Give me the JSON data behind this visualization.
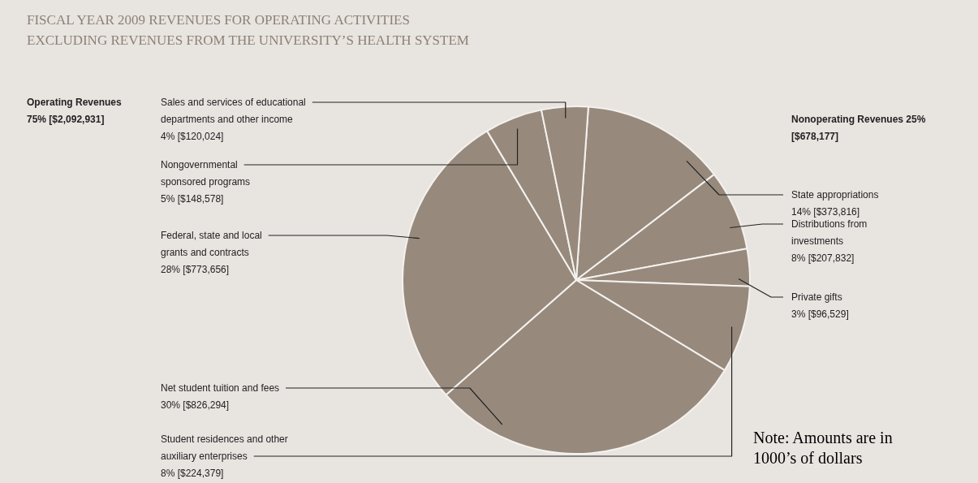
{
  "chart_data": {
    "type": "pie",
    "title": "FISCAL YEAR 2009 REVENUES FOR OPERATING ACTIVITIES",
    "subtitle": "EXCLUDING REVENUES FROM THE UNIVERSITY’S HEALTH SYSTEM",
    "categories": [
      "State appropriations",
      "Distributions from investments",
      "Private gifts",
      "Student residences and other auxiliary enterprises",
      "Net student tuition and fees",
      "Federal, state and local grants and contracts",
      "Nongovernmental sponsored programs",
      "Sales and services of educational departments and other income"
    ],
    "values": [
      373816,
      207832,
      96529,
      224379,
      826294,
      773656,
      148578,
      120024
    ],
    "value_labels": [
      "14% [$373,816]",
      "8% [$207,832]",
      "3% [$96,529]",
      "8% [$224,379]",
      "30% [$826,294]",
      "28% [$773,656]",
      "5% [$148,578]",
      "4% [$120,024]"
    ],
    "colors": [
      "#978a7c",
      "#978a7c",
      "#978a7c",
      "#978a7c",
      "#978a7c",
      "#978a7c",
      "#978a7c",
      "#978a7c"
    ],
    "annotations": [
      "Operating Revenues 75% [$2,092,931]",
      "Nonoperating Revenues 25% [$678,177]",
      "Note: Amounts are in 1000’s of dollars"
    ],
    "legend": false
  }
}
